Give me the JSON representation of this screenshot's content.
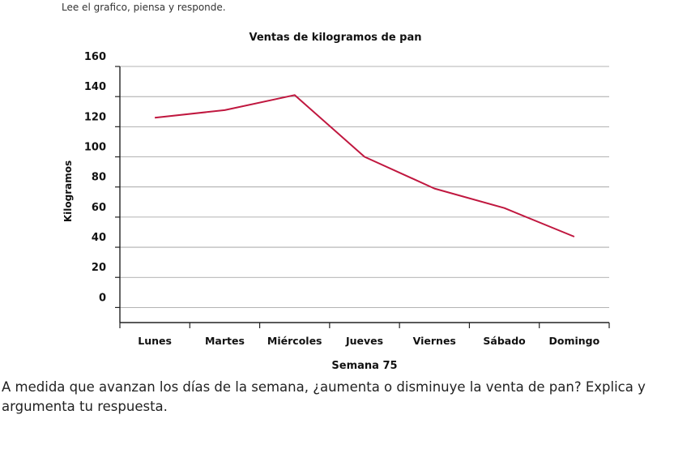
{
  "instruction": "Lee el grafico, piensa y responde.",
  "question": "A medida que avanzan los días de la semana, ¿aumenta o disminuye la venta de pan? Explica y argumenta tu respuesta.",
  "chart_data": {
    "type": "line",
    "title": "Ventas de kilogramos de pan",
    "xlabel": "Semana 75",
    "ylabel": "Kilogramos",
    "categories": [
      "Lunes",
      "Martes",
      "Miércoles",
      "Jueves",
      "Viernes",
      "Sábado",
      "Domingo"
    ],
    "series": [
      {
        "values": [
          126,
          131,
          141,
          100,
          79,
          66,
          47
        ],
        "color": "#c0173f"
      }
    ],
    "yticks": [
      0,
      20,
      40,
      60,
      80,
      100,
      120,
      140,
      160
    ],
    "ylim": [
      -10,
      160
    ],
    "grid": true
  }
}
